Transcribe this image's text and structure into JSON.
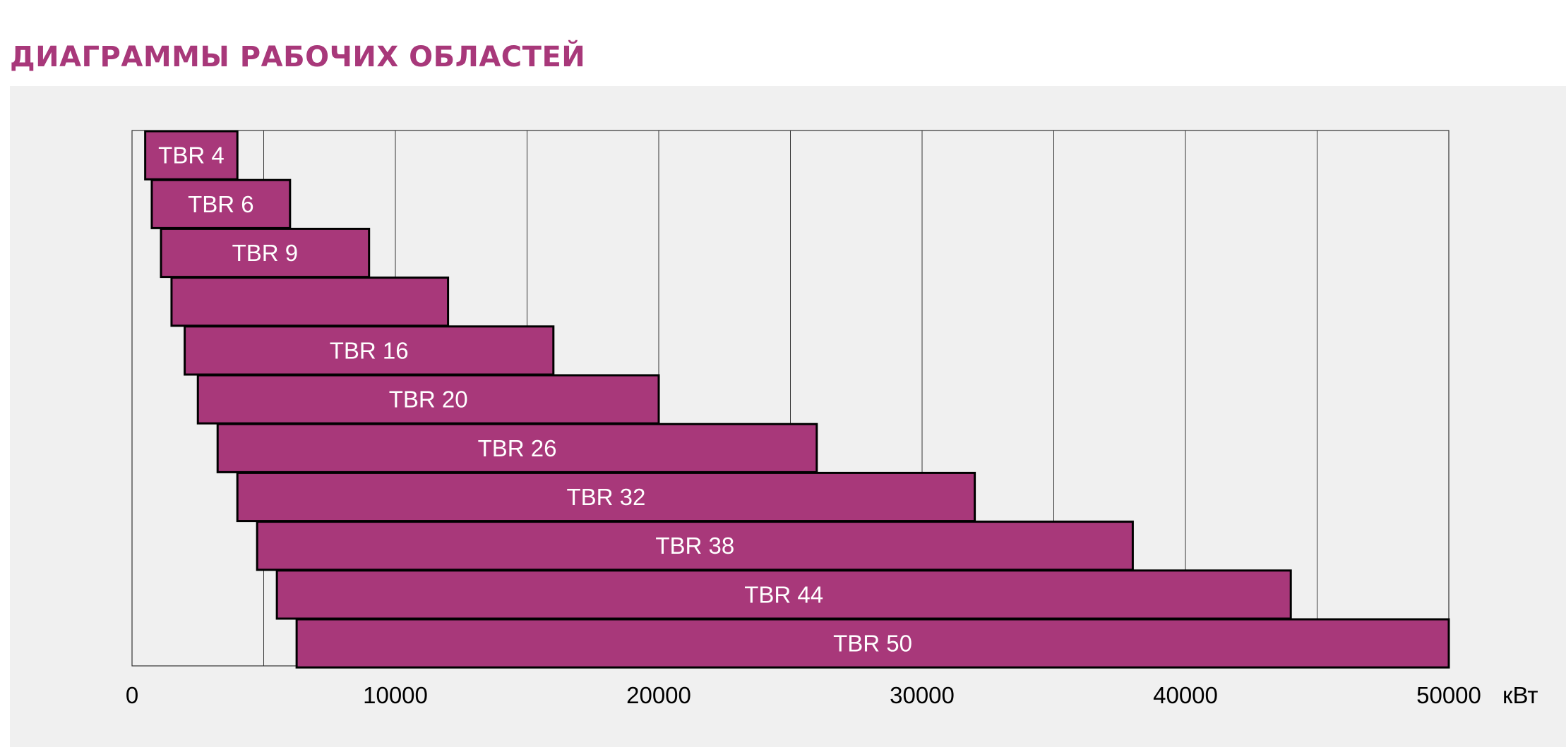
{
  "page": {
    "title": "ДИАГРАММЫ РАБОЧИХ ОБЛАСТЕЙ"
  },
  "chart_data": {
    "type": "bar",
    "orientation": "horizontal-range",
    "title": "ДИАГРАММЫ РАБОЧИХ ОБЛАСТЕЙ",
    "xlabel": "кВт",
    "ylabel": "",
    "xlim": [
      0,
      50000
    ],
    "xticks": [
      0,
      10000,
      20000,
      30000,
      40000,
      50000
    ],
    "grid_step": 5000,
    "grid": true,
    "bar_color": "#a8387a",
    "bar_edge_color": "#000000",
    "bars": [
      {
        "label": "TBR 4",
        "start": 500,
        "end": 4000
      },
      {
        "label": "TBR 6",
        "start": 750,
        "end": 6000
      },
      {
        "label": "TBR 9",
        "start": 1100,
        "end": 9000
      },
      {
        "label": "",
        "start": 1500,
        "end": 12000
      },
      {
        "label": "TBR 16",
        "start": 2000,
        "end": 16000
      },
      {
        "label": "TBR 20",
        "start": 2500,
        "end": 20000
      },
      {
        "label": "TBR 26",
        "start": 3250,
        "end": 26000
      },
      {
        "label": "TBR 32",
        "start": 4000,
        "end": 32000
      },
      {
        "label": "TBR 38",
        "start": 4750,
        "end": 38000
      },
      {
        "label": "TBR 44",
        "start": 5500,
        "end": 44000
      },
      {
        "label": "TBR 50",
        "start": 6250,
        "end": 50000
      }
    ]
  }
}
